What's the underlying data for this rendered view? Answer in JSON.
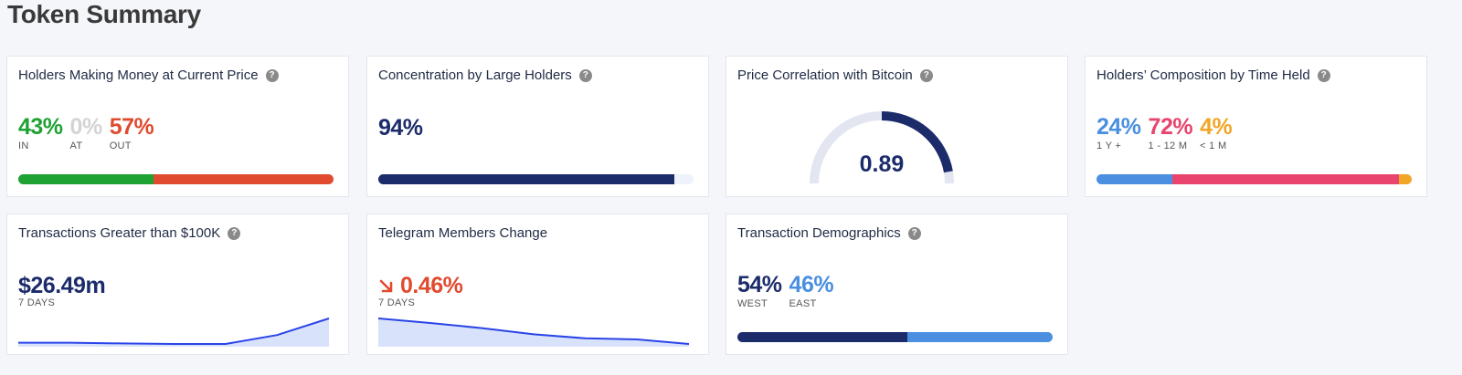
{
  "page_title": "Token Summary",
  "cards": {
    "holders_money": {
      "title": "Holders Making Money at Current Price",
      "stats": [
        {
          "value": "43%",
          "label": "IN",
          "color": "#1fa234"
        },
        {
          "value": "0%",
          "label": "AT",
          "color": "#d4d4d4"
        },
        {
          "value": "57%",
          "label": "OUT",
          "color": "#e04b2f"
        }
      ],
      "bar": [
        {
          "fraction": 0.43,
          "color": "#1fa234"
        },
        {
          "fraction": 0.57,
          "color": "#e04b2f"
        }
      ]
    },
    "concentration": {
      "title": "Concentration by Large Holders",
      "value": "94%",
      "fraction": 0.94,
      "color": "#1c2c6b"
    },
    "btc_correlation": {
      "title": "Price Correlation with Bitcoin",
      "value": "0.89",
      "level": 0.89,
      "color": "#1c2c6b"
    },
    "time_held": {
      "title": "Holders’ Composition by Time Held",
      "stats": [
        {
          "value": "24%",
          "label": "1 Y +",
          "color": "#4a8fe0"
        },
        {
          "value": "72%",
          "label": "1 - 12 M",
          "color": "#e8446e"
        },
        {
          "value": "4%",
          "label": "< 1 M",
          "color": "#f2a628"
        }
      ],
      "bar": [
        {
          "fraction": 0.24,
          "color": "#4a8fe0"
        },
        {
          "fraction": 0.72,
          "color": "#e8446e"
        },
        {
          "fraction": 0.04,
          "color": "#f2a628"
        }
      ]
    },
    "large_tx": {
      "title": "Transactions Greater than $100K",
      "value": "$26.49m",
      "period": "7 DAYS",
      "spark": [
        0.05,
        0.05,
        0.02,
        0.0,
        0.0,
        0.35,
        1.0
      ]
    },
    "telegram": {
      "title": "Telegram Members Change",
      "value": "0.46%",
      "trend_icon": "arrow-down-right-icon",
      "period": "7 DAYS",
      "color": "#e04b2f",
      "spark": [
        1.0,
        0.82,
        0.62,
        0.38,
        0.22,
        0.18,
        0.0
      ]
    },
    "demographics": {
      "title": "Transaction Demographics",
      "stats": [
        {
          "value": "54%",
          "label": "WEST",
          "color": "#1c2c6b"
        },
        {
          "value": "46%",
          "label": "EAST",
          "color": "#4a8fe0"
        }
      ],
      "bar": [
        {
          "fraction": 0.54,
          "color": "#1c2c6b"
        },
        {
          "fraction": 0.46,
          "color": "#4a8fe0"
        }
      ]
    }
  },
  "help_icon": "help-circle-icon",
  "help_glyph": "?"
}
